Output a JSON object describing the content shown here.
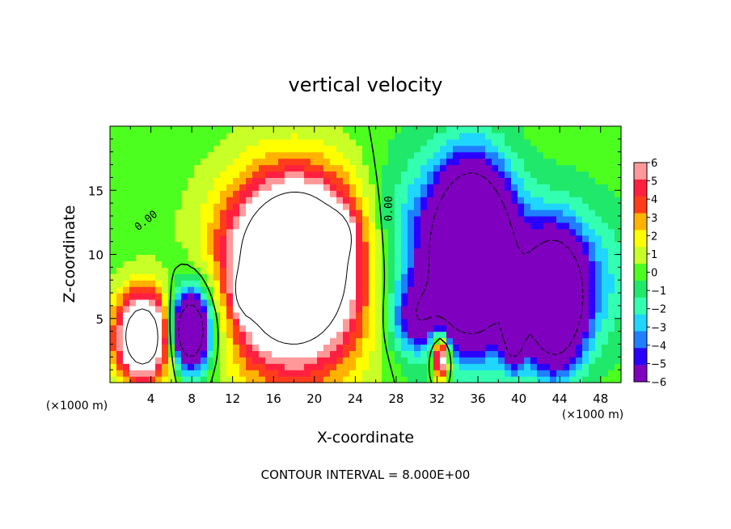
{
  "chart_data": {
    "type": "heatmap",
    "title": "vertical velocity",
    "xlabel": "X-coordinate",
    "ylabel": "Z-coordinate",
    "x_unit_label": "(×1000 m)",
    "footer": "CONTOUR INTERVAL = 8.000E+00",
    "xlim": [
      0,
      50
    ],
    "ylim": [
      0,
      20
    ],
    "x_ticks": [
      "4",
      "8",
      "12",
      "16",
      "20",
      "24",
      "28",
      "32",
      "36",
      "40",
      "44",
      "48"
    ],
    "y_ticks": [
      "5",
      "10",
      "15"
    ],
    "contour_labels": [
      "0.00",
      "0.00"
    ],
    "colorbar": {
      "ticks": [
        "6",
        "5",
        "4",
        "3",
        "2",
        "1",
        "0",
        "−1",
        "−2",
        "−3",
        "−4",
        "−5",
        "−6"
      ],
      "range": [
        -6,
        6
      ],
      "saturated_positive_color": "#ffffff"
    },
    "features": [
      {
        "x": 3.2,
        "z": 3.6,
        "rx": 2.6,
        "rz": 3.4,
        "w": 12
      },
      {
        "x": 18.0,
        "z": 8.0,
        "rx": 7.0,
        "rz": 7.0,
        "w": 13
      },
      {
        "x": 18.5,
        "z": 11.5,
        "rx": 5.5,
        "rz": 5.0,
        "w": 5
      },
      {
        "x": 22.2,
        "z": 11.5,
        "rx": 1.4,
        "rz": 1.5,
        "w": 5
      },
      {
        "x": 13.3,
        "z": 7.0,
        "rx": 1.0,
        "rz": 1.5,
        "w": 5
      },
      {
        "x": 7.8,
        "z": 4.0,
        "rx": 1.6,
        "rz": 2.6,
        "w": -14
      },
      {
        "x": 9.2,
        "z": 5.5,
        "rx": 3.5,
        "rz": 4.5,
        "w": -3
      },
      {
        "x": 35.5,
        "z": 10.2,
        "rx": 3.4,
        "rz": 6.0,
        "w": -18
      },
      {
        "x": 32.0,
        "z": 10.0,
        "rx": 8.0,
        "rz": 7.0,
        "w": -4.5
      },
      {
        "x": 43.5,
        "z": 6.2,
        "rx": 2.6,
        "rz": 4.6,
        "w": -14
      },
      {
        "x": 39.5,
        "z": 3.5,
        "rx": 1.0,
        "rz": 2.2,
        "w": -9
      },
      {
        "x": 44.0,
        "z": 8.0,
        "rx": 6.5,
        "rz": 5.5,
        "w": -4
      },
      {
        "x": 30.5,
        "z": 5.0,
        "rx": 2.5,
        "rz": 2.5,
        "w": -6
      },
      {
        "x": 32.4,
        "z": 1.9,
        "rx": 0.8,
        "rz": 1.7,
        "w": 9
      },
      {
        "x": 31.8,
        "z": 3.8,
        "rx": 1.4,
        "rz": 2.0,
        "w": 3
      }
    ]
  },
  "colors": {
    "scale": [
      "#7f00bf",
      "#2a00ff",
      "#1f7fff",
      "#1fd6ff",
      "#33ffb0",
      "#20e86a",
      "#4dff1f",
      "#c8ff26",
      "#ffff00",
      "#ffb300",
      "#ff3d1a",
      "#ff2040",
      "#ff9999"
    ]
  }
}
